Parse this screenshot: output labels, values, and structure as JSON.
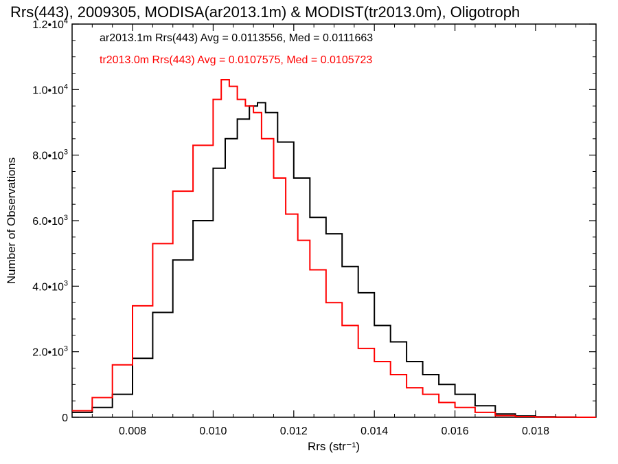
{
  "chart_data": {
    "type": "line",
    "title": "Rrs(443), 2009305, MODISA(ar2013.1m) & MODIST(tr2013.0m), Oligotroph",
    "xlabel": "Rrs (str⁻¹)",
    "ylabel": "Number of Observations",
    "xlim": [
      0.0065,
      0.0195
    ],
    "ylim": [
      0,
      12000
    ],
    "x_ticks": [
      0.008,
      0.01,
      0.012,
      0.014,
      0.016,
      0.018
    ],
    "x_tick_labels": [
      "0.008",
      "0.010",
      "0.012",
      "0.014",
      "0.016",
      "0.018"
    ],
    "y_ticks": [
      0,
      2000,
      4000,
      6000,
      8000,
      10000,
      12000
    ],
    "y_tick_labels": [
      {
        "mantissa": "0",
        "exp": ""
      },
      {
        "mantissa": "2.0•10",
        "exp": "3"
      },
      {
        "mantissa": "4.0•10",
        "exp": "3"
      },
      {
        "mantissa": "6.0•10",
        "exp": "3"
      },
      {
        "mantissa": "8.0•10",
        "exp": "3"
      },
      {
        "mantissa": "1.0•10",
        "exp": "4"
      },
      {
        "mantissa": "1.2•10",
        "exp": "4"
      }
    ],
    "grid": false,
    "legend_position": "top-left",
    "series": [
      {
        "name": "ar2013.1m Rrs(443) Avg = 0.0113556, Med = 0.0111663",
        "color": "#000000",
        "x": [
          0.0065,
          0.007,
          0.0075,
          0.008,
          0.0085,
          0.009,
          0.0095,
          0.01,
          0.0103,
          0.0106,
          0.0109,
          0.0111,
          0.0113,
          0.0116,
          0.012,
          0.0124,
          0.0128,
          0.0132,
          0.0136,
          0.014,
          0.0144,
          0.0148,
          0.0152,
          0.0156,
          0.016,
          0.0165,
          0.017,
          0.0175,
          0.018,
          0.0185,
          0.019,
          0.0195
        ],
        "values": [
          150,
          300,
          700,
          1800,
          3200,
          4800,
          6000,
          7600,
          8500,
          9100,
          9500,
          9600,
          9300,
          8400,
          7300,
          6100,
          5600,
          4600,
          3800,
          2800,
          2300,
          1700,
          1300,
          1000,
          700,
          350,
          100,
          40,
          15,
          5,
          0,
          0
        ]
      },
      {
        "name": "tr2013.0m Rrs(443) Avg = 0.0107575, Med = 0.0105723",
        "color": "#ff0000",
        "x": [
          0.0065,
          0.007,
          0.0075,
          0.008,
          0.0085,
          0.009,
          0.0095,
          0.01,
          0.0102,
          0.0104,
          0.0106,
          0.0108,
          0.011,
          0.0112,
          0.0115,
          0.0118,
          0.0121,
          0.0124,
          0.0128,
          0.0132,
          0.0136,
          0.014,
          0.0144,
          0.0148,
          0.0152,
          0.0156,
          0.016,
          0.0165,
          0.017,
          0.0175,
          0.018,
          0.019,
          0.0195
        ],
        "values": [
          200,
          600,
          1600,
          3400,
          5300,
          6900,
          8300,
          9700,
          10300,
          10100,
          9700,
          9500,
          9300,
          8500,
          7300,
          6200,
          5400,
          4500,
          3500,
          2800,
          2100,
          1700,
          1300,
          900,
          700,
          450,
          300,
          150,
          50,
          20,
          5,
          0,
          0
        ]
      }
    ]
  }
}
